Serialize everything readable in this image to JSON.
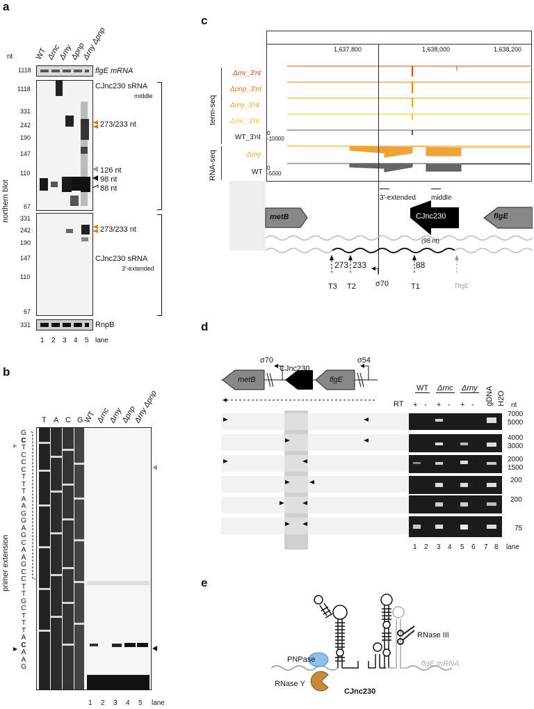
{
  "panel_a": {
    "letter": "a",
    "nt_label": "nt",
    "lanes": [
      "WT",
      "Δrnc",
      "Δrny",
      "Δpnp",
      "Δrny Δpnp"
    ],
    "flgE_size": "1118",
    "flgE_label": "flgE mRNA",
    "middle_sizes": [
      "1118",
      "331",
      "242",
      "190",
      "147",
      "110",
      "67"
    ],
    "middle_title": "CJnc230 sRNA",
    "middle_sub": "middle",
    "mid_annots": [
      "273/233 nt",
      "126 nt",
      "98 nt",
      "88 nt"
    ],
    "ext_sizes": [
      "331",
      "242",
      "190",
      "147",
      "110",
      "67"
    ],
    "ext_title": "CJnc230 sRNA",
    "ext_sub": "3'-extended",
    "ext_annot": "273/233 nt",
    "rnpb_size": "331",
    "rnpb_label": "RnpB",
    "ylabel": "northern blot",
    "lane_numbers": [
      "1",
      "2",
      "3",
      "4",
      "5"
    ],
    "lane_word": "lane"
  },
  "panel_b": {
    "letter": "b",
    "ladder": [
      "T",
      "A",
      "C",
      "G"
    ],
    "lanes": [
      "WT",
      "Δrnc",
      "Δrny",
      "Δpnp",
      "Δrny Δpnp"
    ],
    "sequence": [
      "G",
      "C",
      "T",
      "C",
      "C",
      "C",
      "T",
      "T",
      "T",
      "A",
      "A",
      "G",
      "G",
      "A",
      "G",
      "C",
      "A",
      "A",
      "G",
      "C",
      "C",
      "T",
      "T",
      "G",
      "C",
      "T",
      "T",
      "T",
      "A",
      "C",
      "A",
      "A",
      "G"
    ],
    "ylabel": "primer extension",
    "lane_numbers": [
      "1",
      "2",
      "3",
      "4",
      "5"
    ],
    "lane_word": "lane"
  },
  "panel_c": {
    "letter": "c",
    "coords": [
      "1,637,800",
      "1,638,000",
      "1,638,200"
    ],
    "term_tracks": [
      {
        "label": "Δrnr_3'nt",
        "color": "#c0521a"
      },
      {
        "label": "Δpnp_3'nt",
        "color": "#e07b18"
      },
      {
        "label": "Δrny_3'nt",
        "color": "#e8a017"
      },
      {
        "label": "Δrnc_3'nt",
        "color": "#f1c232"
      },
      {
        "label": "WT_3'nt",
        "color": "#555555"
      }
    ],
    "wt_term_scale": [
      "0",
      "-10000"
    ],
    "rnaseq_tracks": [
      {
        "label": "Δrny",
        "color": "#f0a23a"
      },
      {
        "label": "WT",
        "color": "#555555"
      }
    ],
    "wt_rnaseq_scale": [
      "0",
      "-5000"
    ],
    "group_termseq": "term-seq",
    "group_rnaseq": "RNA-seq",
    "probe_3ext": "3'-extended",
    "probe_middle": "middle",
    "gene_metB": "metB",
    "gene_cjnc": "CJnc230",
    "gene_cjnc_sub": "(98 nt)",
    "gene_flgE": "flgE",
    "pos_273": "273",
    "pos_233": "233",
    "pos_88": "88",
    "t3": "T3",
    "t2": "T2",
    "sigma": "σ70",
    "t1": "T1",
    "tflgE": "TflgE"
  },
  "panel_d": {
    "letter": "d",
    "sigma70": "σ70",
    "sigma54": "σ54",
    "cjnc": "CJnc230",
    "metB": "metB",
    "flgE": "flgE",
    "rt": "RT",
    "strains": [
      "WT",
      "Δrnc",
      "Δrny"
    ],
    "gdna": "gDNA",
    "h2o": "H2O",
    "plus": "+",
    "minus": "-",
    "nt": "nt",
    "sizes": [
      "7000",
      "5000",
      "4000",
      "3000",
      "2000",
      "1500",
      "200",
      "200",
      "75"
    ],
    "lane_numbers": [
      "1",
      "2",
      "3",
      "4",
      "5",
      "6",
      "7",
      "8"
    ],
    "lane_word": "lane"
  },
  "panel_e": {
    "letter": "e",
    "rnase3": "RNase III",
    "flgE_mrna": "flgE mRNA",
    "pnpase": "PNPase",
    "rnasey": "RNase Y",
    "cjnc": "CJnc230"
  }
}
